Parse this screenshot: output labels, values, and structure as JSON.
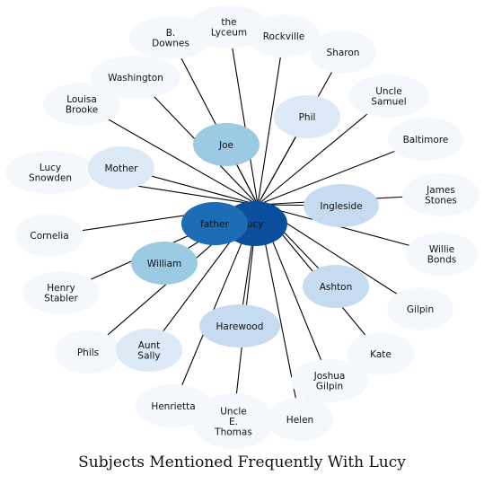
{
  "diagram": {
    "type": "network",
    "title": "Subjects Mentioned Frequently With Lucy",
    "center_node": {
      "label": "Lucy",
      "display": "ucy",
      "color": "#0a4f9e"
    },
    "nodes": [
      {
        "id": "father",
        "label": "father",
        "color": "#1c6db3",
        "links": [
          "Lucy"
        ]
      },
      {
        "id": "b-downes",
        "label": "B.\nDownes",
        "color": "#f4f8fd",
        "links": [
          "Lucy"
        ]
      },
      {
        "id": "lyceum",
        "label": "the\nLyceum",
        "color": "#f4f8fd",
        "links": [
          "Lucy"
        ]
      },
      {
        "id": "rockville",
        "label": "Rockville",
        "color": "#f4f8fd",
        "links": [
          "Lucy"
        ]
      },
      {
        "id": "sharon",
        "label": "Sharon",
        "color": "#f4f8fd",
        "links": [
          "Lucy"
        ]
      },
      {
        "id": "washington",
        "label": "Washington",
        "color": "#f4f8fd",
        "links": [
          "Lucy"
        ]
      },
      {
        "id": "louisa",
        "label": "Louisa\nBrooke",
        "color": "#f4f8fd",
        "links": [
          "Lucy"
        ]
      },
      {
        "id": "phil",
        "label": "Phil",
        "color": "#dce9f6",
        "links": [
          "Lucy"
        ]
      },
      {
        "id": "uncle-samuel",
        "label": "Uncle\nSamuel",
        "color": "#f4f8fd",
        "links": [
          "Lucy"
        ]
      },
      {
        "id": "joe",
        "label": "Joe",
        "color": "#9ccae2",
        "links": [
          "Lucy"
        ]
      },
      {
        "id": "baltimore",
        "label": "Baltimore",
        "color": "#f4f8fd",
        "links": [
          "Lucy"
        ]
      },
      {
        "id": "lucy-snowden",
        "label": "Lucy\nSnowden",
        "color": "#f4f8fd",
        "links": [
          "Lucy"
        ]
      },
      {
        "id": "mother",
        "label": "Mother",
        "color": "#dce9f6",
        "links": [
          "Lucy"
        ]
      },
      {
        "id": "ingleside",
        "label": "Ingleside",
        "color": "#c6daf0",
        "links": [
          "Lucy"
        ]
      },
      {
        "id": "james-stones",
        "label": "James\nStones",
        "color": "#f4f8fd",
        "links": [
          "Lucy"
        ]
      },
      {
        "id": "cornelia",
        "label": "Cornelia",
        "color": "#f4f8fd",
        "links": [
          "Lucy"
        ]
      },
      {
        "id": "willie",
        "label": "Willie\nBonds",
        "color": "#f4f8fd",
        "links": [
          "Lucy"
        ]
      },
      {
        "id": "william",
        "label": "William",
        "color": "#9ccae2",
        "links": [
          "Lucy"
        ]
      },
      {
        "id": "henry",
        "label": "Henry\nStabler",
        "color": "#f4f8fd",
        "links": [
          "Lucy"
        ]
      },
      {
        "id": "ashton",
        "label": "Ashton",
        "color": "#c6daf0",
        "links": [
          "Lucy"
        ]
      },
      {
        "id": "gilpin",
        "label": "Gilpin",
        "color": "#f4f8fd",
        "links": [
          "Lucy"
        ]
      },
      {
        "id": "harewood",
        "label": "Harewood",
        "color": "#c6daf0",
        "links": [
          "Lucy"
        ]
      },
      {
        "id": "phils",
        "label": "Phils",
        "color": "#f4f8fd",
        "links": [
          "Lucy"
        ]
      },
      {
        "id": "aunt-sally",
        "label": "Aunt\nSally",
        "color": "#dce9f6",
        "links": [
          "Lucy"
        ]
      },
      {
        "id": "kate",
        "label": "Kate",
        "color": "#f4f8fd",
        "links": [
          "Lucy"
        ]
      },
      {
        "id": "joshua",
        "label": "Joshua\nGilpin",
        "color": "#f4f8fd",
        "links": [
          "Lucy"
        ]
      },
      {
        "id": "henrietta",
        "label": "Henrietta",
        "color": "#f4f8fd",
        "links": [
          "Lucy"
        ]
      },
      {
        "id": "uncle-thomas",
        "label": "Uncle\nE.\nThomas",
        "color": "#f4f8fd",
        "links": [
          "Lucy"
        ]
      },
      {
        "id": "helen",
        "label": "Helen",
        "color": "#f4f8fd",
        "links": [
          "Lucy"
        ]
      }
    ]
  }
}
